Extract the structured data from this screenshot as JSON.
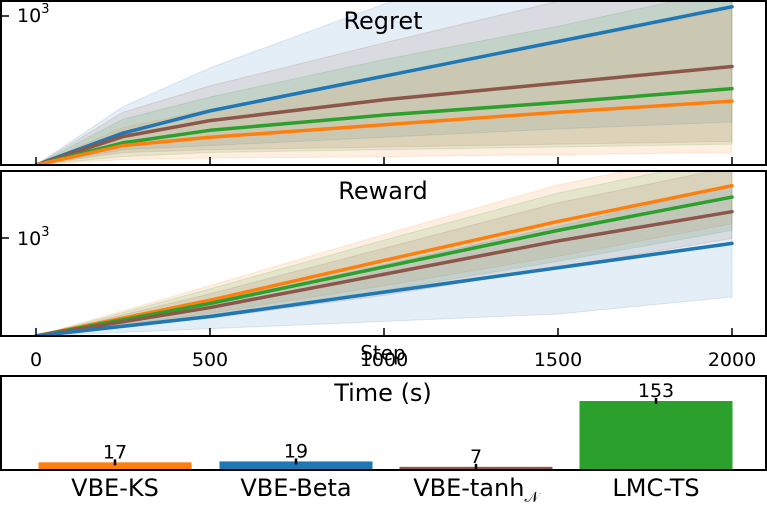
{
  "chart_data": [
    {
      "type": "line",
      "title": "Regret",
      "xlim": [
        0,
        2000
      ],
      "x_ticks": [
        0,
        500,
        1000,
        1500,
        2000
      ],
      "y_scale": "log",
      "y_tick_label": "10^3",
      "x": [
        0,
        250,
        500,
        1000,
        1500,
        2000
      ],
      "series": [
        {
          "color": "#1f77b4",
          "values": [
            0,
            230,
            390,
            640,
            890,
            1140
          ],
          "band": [
            [
              0,
              0
            ],
            [
              110,
              420
            ],
            [
              140,
              700
            ],
            [
              200,
              1160
            ],
            [
              260,
              1500
            ],
            [
              310,
              1560
            ]
          ]
        },
        {
          "color": "#8c564b",
          "values": [
            0,
            205,
            320,
            470,
            590,
            710
          ],
          "band": [
            [
              0,
              0
            ],
            [
              90,
              380
            ],
            [
              110,
              570
            ],
            [
              130,
              880
            ],
            [
              150,
              1180
            ],
            [
              170,
              1440
            ]
          ]
        },
        {
          "color": "#2ca02c",
          "values": [
            0,
            160,
            250,
            360,
            450,
            550
          ],
          "band": [
            [
              0,
              0
            ],
            [
              60,
              330
            ],
            [
              90,
              490
            ],
            [
              110,
              760
            ],
            [
              130,
              1000
            ],
            [
              150,
              1270
            ]
          ]
        },
        {
          "color": "#ff7f0e",
          "values": [
            0,
            140,
            200,
            290,
            380,
            460
          ],
          "band": [
            [
              0,
              0
            ],
            [
              40,
              270
            ],
            [
              50,
              400
            ],
            [
              60,
              640
            ],
            [
              75,
              880
            ],
            [
              90,
              1120
            ]
          ]
        }
      ]
    },
    {
      "type": "line",
      "title": "Reward",
      "xlabel": "Step",
      "xlim": [
        0,
        2000
      ],
      "x_ticks": [
        0,
        500,
        1000,
        1500,
        2000
      ],
      "x_tick_labels": [
        "0",
        "500",
        "1000",
        "1500",
        "2000"
      ],
      "y_scale": "log",
      "y_tick_label": "10^3",
      "x": [
        0,
        500,
        1000,
        1500,
        2000
      ],
      "series": [
        {
          "color": "#ff7f0e",
          "values": [
            0,
            440,
            930,
            1410,
            1850
          ],
          "band": [
            [
              0,
              0
            ],
            [
              280,
              620
            ],
            [
              620,
              1250
            ],
            [
              980,
              1860
            ],
            [
              1380,
              2300
            ]
          ]
        },
        {
          "color": "#2ca02c",
          "values": [
            0,
            400,
            850,
            1300,
            1710
          ],
          "band": [
            [
              0,
              0
            ],
            [
              250,
              580
            ],
            [
              560,
              1180
            ],
            [
              920,
              1760
            ],
            [
              1300,
              2200
            ]
          ]
        },
        {
          "color": "#8c564b",
          "values": [
            0,
            350,
            760,
            1170,
            1530
          ],
          "band": [
            [
              0,
              0
            ],
            [
              220,
              520
            ],
            [
              500,
              1080
            ],
            [
              840,
              1640
            ],
            [
              1200,
              2080
            ]
          ]
        },
        {
          "color": "#1f77b4",
          "values": [
            0,
            240,
            540,
            840,
            1140
          ],
          "band": [
            [
              0,
              0
            ],
            [
              90,
              420
            ],
            [
              180,
              880
            ],
            [
              270,
              1350
            ],
            [
              480,
              1850
            ]
          ]
        }
      ]
    },
    {
      "type": "bar",
      "title": "Time (s)",
      "categories": [
        "VBE-KS",
        "VBE-Beta",
        "VBE-tanh",
        "LMC-TS"
      ],
      "category_subscript": [
        "",
        "",
        "𝒩",
        ""
      ],
      "values": [
        17,
        19,
        7,
        153
      ],
      "value_labels": [
        "17",
        "19",
        "7",
        "153"
      ],
      "colors": [
        "#ff7f0e",
        "#1f77b4",
        "#8c564b",
        "#2ca02c"
      ],
      "ylim": [
        0,
        170
      ]
    }
  ]
}
